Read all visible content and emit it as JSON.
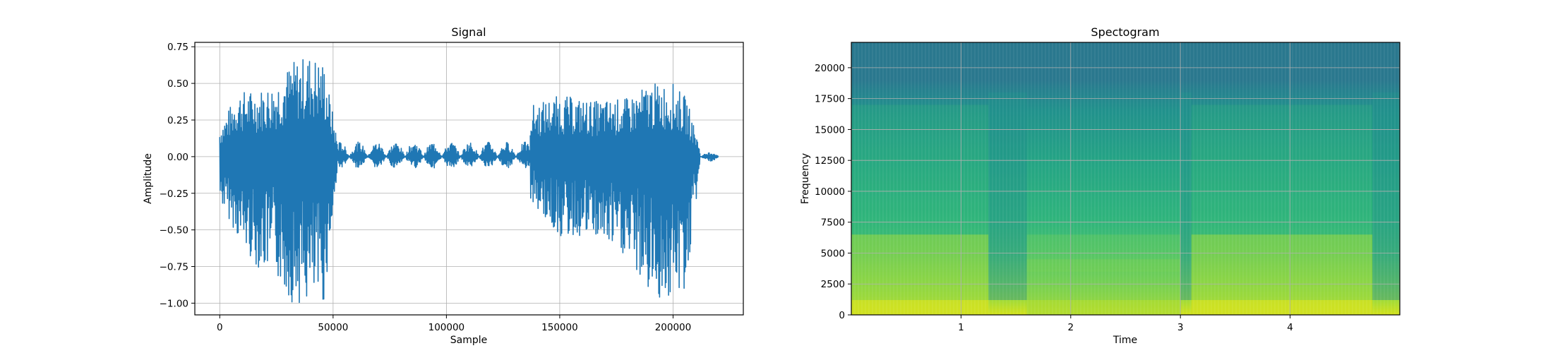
{
  "chart_data": [
    {
      "type": "line",
      "title": "Signal",
      "xlabel": "Sample",
      "ylabel": "Amplitude",
      "xlim": [
        -11000,
        231000
      ],
      "ylim": [
        -1.08,
        0.78
      ],
      "grid": true,
      "color": "#1f77b4",
      "xticks": [
        0,
        50000,
        100000,
        150000,
        200000
      ],
      "xtick_labels": [
        "0",
        "50000",
        "100000",
        "150000",
        "200000"
      ],
      "yticks": [
        0.75,
        0.5,
        0.25,
        0.0,
        -0.25,
        -0.5,
        -0.75,
        -1.0
      ],
      "ytick_labels": [
        "0.75",
        "0.50",
        "0.25",
        "0.00",
        "−0.25",
        "−0.50",
        "−0.75",
        "−1.00"
      ],
      "series": [
        {
          "description": "audio waveform",
          "segments": [
            {
              "x_start": 0,
              "x_end": 52000,
              "envelope_x": [
                0,
                8000,
                16000,
                24000,
                32000,
                40000,
                46000,
                52000
              ],
              "max": [
                0.2,
                0.45,
                0.45,
                0.5,
                0.65,
                0.7,
                0.65,
                0.1
              ],
              "min": [
                -0.3,
                -0.55,
                -0.75,
                -0.8,
                -1.0,
                -1.0,
                -1.0,
                -0.1
              ]
            },
            {
              "x_start": 52000,
              "x_end": 137000,
              "max": 0.1,
              "min": -0.08
            },
            {
              "x_start": 137000,
              "x_end": 212000,
              "envelope_x": [
                137000,
                150000,
                165000,
                180000,
                190000,
                200000,
                206000,
                212000
              ],
              "max": [
                0.35,
                0.42,
                0.38,
                0.4,
                0.5,
                0.5,
                0.4,
                0.05
              ],
              "min": [
                -0.3,
                -0.55,
                -0.55,
                -0.7,
                -0.95,
                -1.0,
                -0.9,
                -0.05
              ]
            },
            {
              "x_start": 212000,
              "x_end": 220000,
              "max": 0.03,
              "min": -0.03
            }
          ]
        }
      ]
    },
    {
      "type": "heatmap",
      "title": "Spectogram",
      "xlabel": "Time",
      "ylabel": "Frequency",
      "xlim": [
        0,
        5.0
      ],
      "ylim": [
        0,
        22050
      ],
      "grid": true,
      "colormap": "viridis",
      "xticks": [
        1,
        2,
        3,
        4
      ],
      "xtick_labels": [
        "1",
        "2",
        "3",
        "4"
      ],
      "yticks": [
        0,
        2500,
        5000,
        7500,
        10000,
        12500,
        15000,
        17500,
        20000
      ],
      "ytick_labels": [
        "0",
        "2500",
        "5000",
        "7500",
        "10000",
        "12500",
        "15000",
        "17500",
        "20000"
      ],
      "energy_regions": [
        {
          "t_start": 0.0,
          "t_end": 1.25,
          "level": "high"
        },
        {
          "t_start": 1.25,
          "t_end": 1.6,
          "level": "low"
        },
        {
          "t_start": 1.6,
          "t_end": 3.0,
          "level": "medium"
        },
        {
          "t_start": 3.0,
          "t_end": 3.1,
          "level": "low"
        },
        {
          "t_start": 3.1,
          "t_end": 4.75,
          "level": "high"
        },
        {
          "t_start": 4.75,
          "t_end": 5.0,
          "level": "low"
        }
      ]
    }
  ]
}
